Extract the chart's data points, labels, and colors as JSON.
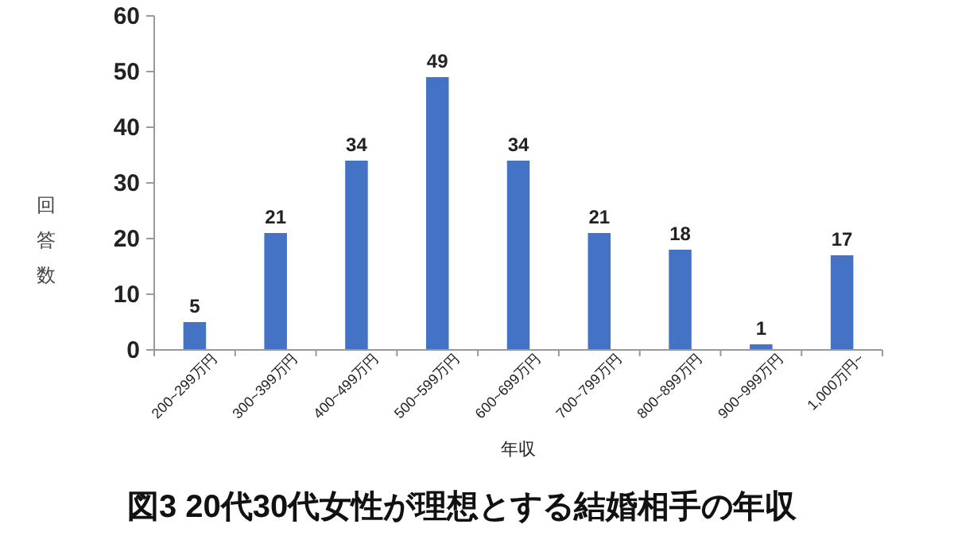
{
  "chart_data": {
    "type": "bar",
    "title": "図3 20代30代女性が理想とする結婚相手の年収",
    "xlabel": "年収",
    "ylabel": "回答数",
    "categories": [
      "200~299万円",
      "300~399万円",
      "400~499万円",
      "500~599万円",
      "600~699万円",
      "700~799万円",
      "800~899万円",
      "900~999万円",
      "1,000万円~"
    ],
    "values": [
      5,
      21,
      34,
      49,
      34,
      21,
      18,
      1,
      17
    ],
    "color": "#4472c4",
    "ylim": [
      0,
      60
    ],
    "yticks": [
      0,
      10,
      20,
      30,
      40,
      50,
      60
    ],
    "data_labels": true,
    "grid": false
  }
}
